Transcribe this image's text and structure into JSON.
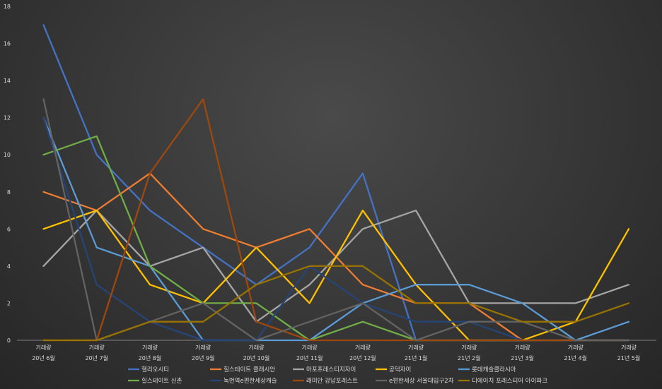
{
  "chart_data": {
    "type": "line",
    "categories": [
      [
        "거래량",
        "20년 6월"
      ],
      [
        "거래량",
        "20년 7월"
      ],
      [
        "거래량",
        "20년 8월"
      ],
      [
        "거래량",
        "20년 9월"
      ],
      [
        "거래량",
        "20년 10월"
      ],
      [
        "거래량",
        "20년 11월"
      ],
      [
        "거래량",
        "20년 12월"
      ],
      [
        "거래량",
        "21년 1월"
      ],
      [
        "거래량",
        "21년 2월"
      ],
      [
        "거래량",
        "21년 3월"
      ],
      [
        "거래량",
        "21년 4월"
      ],
      [
        "거래량",
        "21년 5월"
      ]
    ],
    "ylim": [
      0,
      18
    ],
    "yticks": [
      0,
      2,
      4,
      6,
      8,
      10,
      12,
      14,
      16,
      18
    ],
    "grid": false,
    "legend_position": "bottom",
    "series": [
      {
        "name": "헬리오시티",
        "color": "#4472C4",
        "values": [
          17,
          10,
          7,
          5,
          3,
          5,
          9,
          0,
          0,
          0,
          0,
          0
        ]
      },
      {
        "name": "힐스테이트 클래시안",
        "color": "#ED7D31",
        "values": [
          8,
          7,
          9,
          6,
          5,
          6,
          3,
          2,
          2,
          0,
          0,
          0
        ]
      },
      {
        "name": "마포프레스티지자이",
        "color": "#A5A5A5",
        "values": [
          4,
          7,
          4,
          5,
          1,
          3,
          6,
          7,
          2,
          2,
          2,
          3
        ]
      },
      {
        "name": "공덕자이",
        "color": "#FFC000",
        "values": [
          6,
          7,
          3,
          2,
          5,
          2,
          7,
          3,
          0,
          0,
          1,
          6
        ]
      },
      {
        "name": "롯데캐슬클라시아",
        "color": "#5B9BD5",
        "values": [
          12,
          5,
          4,
          0,
          0,
          0,
          2,
          3,
          3,
          2,
          0,
          1
        ]
      },
      {
        "name": "힐스테이트 신촌",
        "color": "#70AD47",
        "values": [
          10,
          11,
          4,
          2,
          2,
          0,
          1,
          0,
          0,
          0,
          0,
          0
        ]
      },
      {
        "name": "녹번역e편한세상캐슬",
        "color": "#264478",
        "values": [
          12,
          3,
          1,
          0,
          0,
          4,
          2,
          1,
          1,
          0,
          0,
          0
        ]
      },
      {
        "name": "래미안 강남포레스트",
        "color": "#9E480E",
        "values": [
          0,
          0,
          9,
          13,
          1,
          0,
          0,
          0,
          0,
          0,
          0,
          0
        ]
      },
      {
        "name": "e편한세상 서울대입구2차",
        "color": "#636363",
        "values": [
          13,
          0,
          1,
          2,
          0,
          1,
          2,
          0,
          1,
          1,
          0,
          0
        ]
      },
      {
        "name": "디에이치 포레스티어 아이파크",
        "color": "#997300",
        "values": [
          0,
          0,
          1,
          1,
          3,
          4,
          4,
          2,
          2,
          1,
          1,
          2
        ]
      }
    ]
  }
}
